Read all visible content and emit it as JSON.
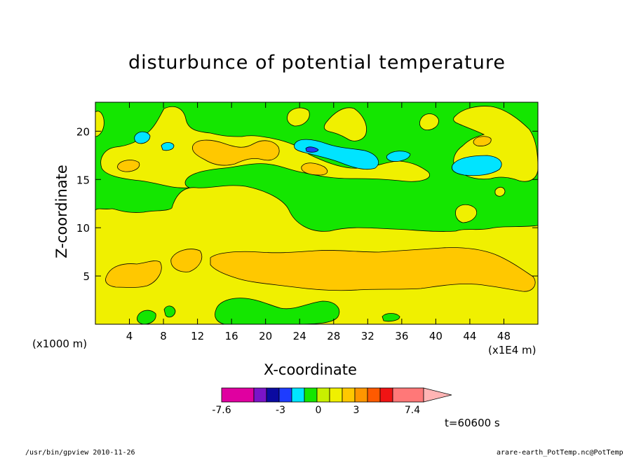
{
  "chart_data": {
    "type": "heatmap",
    "title": "disturbunce of potential temperature",
    "xlabel": "X-coordinate",
    "ylabel": "Z-coordinate",
    "x_unit": "(x1E4 m)",
    "y_unit": "(x1000 m)",
    "xlim": [
      0,
      52
    ],
    "ylim": [
      0,
      23
    ],
    "x_ticks": [
      4,
      8,
      12,
      16,
      20,
      24,
      28,
      32,
      36,
      40,
      44,
      48
    ],
    "y_ticks": [
      5,
      10,
      15,
      20
    ],
    "colorbar": {
      "tick_labels": [
        "-7.6",
        "-3",
        "0",
        "3",
        "7.4"
      ],
      "colors": [
        "#e000a0",
        "#7a14c8",
        "#0a0aa0",
        "#1e3cff",
        "#00e4ff",
        "#14e600",
        "#c8f000",
        "#f0f000",
        "#ffc800",
        "#ff9600",
        "#ff5a00",
        "#f01414",
        "#ff7878",
        "#ffb4b4"
      ]
    },
    "time_label": "t=60600 s",
    "regions": [
      {
        "level": "0 to 1.5",
        "color": "#f0f000",
        "description": "background"
      },
      {
        "level": "-1.5 to 0",
        "color": "#14e600",
        "description": "upper layer z 10-23 and near-surface patches"
      },
      {
        "level": "1.5 to 3",
        "color": "#ffc800",
        "description": "band near z 5-7 and z 16-19"
      },
      {
        "level": "-3 to -1.5",
        "color": "#00e4ff",
        "description": "patches near z 16-20"
      },
      {
        "level": "< -4.5",
        "color": "#1e3cff",
        "description": "small cell near x 25, z 18"
      }
    ]
  },
  "footer": {
    "left": "/usr/bin/gpview   2010-11-26",
    "right": "arare-earth_PotTemp.nc@PotTemp"
  }
}
